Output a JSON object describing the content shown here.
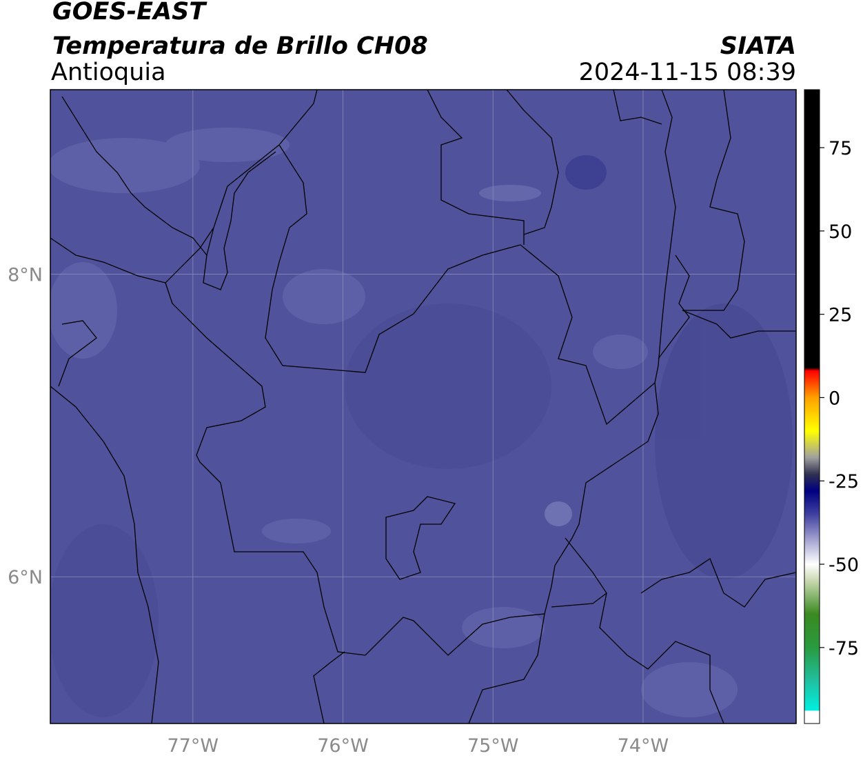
{
  "chart_data": {
    "type": "map",
    "title": "GOES-EAST",
    "subtitle": "Temperatura de Brillo CH08",
    "region": "Antioquia",
    "source": "SIATA",
    "timestamp": "2024-11-15 08:39",
    "xlim": [
      -77.95,
      -72.98
    ],
    "ylim": [
      5.03,
      9.22
    ],
    "xticks": [
      {
        "value": -77,
        "label": "77°W"
      },
      {
        "value": -76,
        "label": "76°W"
      },
      {
        "value": -75,
        "label": "75°W"
      },
      {
        "value": -74,
        "label": "74°W"
      }
    ],
    "yticks": [
      {
        "value": 6,
        "label": "6°N"
      },
      {
        "value": 8,
        "label": "8°N"
      }
    ],
    "grid": true,
    "colorbar": {
      "lim": [
        -97.8,
        92.4
      ],
      "ticks": [
        -75,
        -50,
        -25,
        0,
        25,
        50,
        75
      ],
      "colorscale": [
        {
          "value": -97.8,
          "color": "#ffffff"
        },
        {
          "value": -94,
          "color": "#ffffff"
        },
        {
          "value": -93.9,
          "color": "#00f0e0"
        },
        {
          "value": -85,
          "color": "#20c0a0"
        },
        {
          "value": -75,
          "color": "#2a9a40"
        },
        {
          "value": -65,
          "color": "#3a8a20"
        },
        {
          "value": -55,
          "color": "#c8d8b0"
        },
        {
          "value": -50,
          "color": "#ffffff"
        },
        {
          "value": -45,
          "color": "#c0c0e0"
        },
        {
          "value": -35,
          "color": "#4040a0"
        },
        {
          "value": -28,
          "color": "#000080"
        },
        {
          "value": -23,
          "color": "#303050"
        },
        {
          "value": -18,
          "color": "#a0a0a0"
        },
        {
          "value": -10,
          "color": "#ffff00"
        },
        {
          "value": 0,
          "color": "#ffa000"
        },
        {
          "value": 8,
          "color": "#ff0000"
        },
        {
          "value": 9,
          "color": "#000000"
        },
        {
          "value": 92.4,
          "color": "#000000"
        }
      ]
    }
  }
}
